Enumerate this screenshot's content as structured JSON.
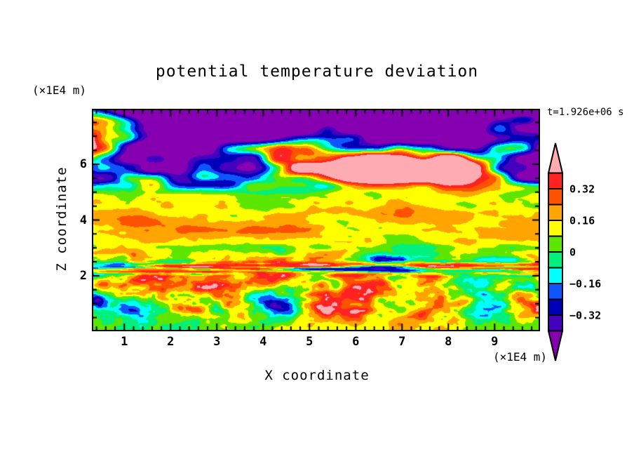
{
  "figure": {
    "title": "potential temperature deviation",
    "time_annotation": "t=1.926e+06 s",
    "background_color": "#FFFFFF"
  },
  "axes": {
    "x": {
      "label": "X coordinate",
      "unit_label": "(×1E4 m)",
      "range": [
        0.33,
        9.95
      ],
      "major_ticks": [
        1,
        2,
        3,
        4,
        5,
        6,
        7,
        8,
        9
      ],
      "minor_tick_step": 0.2
    },
    "y": {
      "label": "Z coordinate",
      "unit_label": "(×1E4 m)",
      "range": [
        0.06,
        7.94
      ],
      "major_ticks": [
        2,
        4,
        6
      ],
      "minor_tick_step": 0.5
    }
  },
  "chart_data": {
    "type": "heatmap",
    "subtype": "filled-contour",
    "title": "potential temperature deviation",
    "time_label": "t=1.926e+06 s",
    "xlabel": "X coordinate",
    "ylabel": "Z coordinate",
    "x_unit": "(×1E4 m)",
    "y_unit": "(×1E4 m)",
    "xlim": [
      0.33,
      9.95
    ],
    "ylim": [
      0.06,
      7.94
    ],
    "contour_levels": [
      -0.4,
      -0.32,
      -0.24,
      -0.16,
      -0.08,
      0,
      0.08,
      0.16,
      0.24,
      0.32,
      0.4
    ],
    "colorbar": {
      "position": "right",
      "tick_values": [
        0.32,
        0.16,
        0,
        -0.16,
        -0.32
      ],
      "tick_labels": [
        "0.32",
        "0.16",
        "0",
        "−0.16",
        "−0.32"
      ],
      "under_range_color": "#8600B2",
      "over_range_color": "#FFABB2",
      "bin_colors_low_to_high": [
        "#4400BE",
        "#0000B8",
        "#0E55FF",
        "#00FFFF",
        "#00F07E",
        "#5CE600",
        "#FFFF00",
        "#FFA400",
        "#FF5200",
        "#FF2222"
      ]
    },
    "field_structure": {
      "z_above_5": "large-amplitude breaking-wave zone: broad saturated patches above +0.4 (pink) and below −0.4 (purple) separated by thin rainbow filaments; purple dominates the very top edge",
      "z_2.6_to_5": "stratified band of weakly positive deviation (green/chartreuse background with yellow streaks near z≈4, values ≈ 0 to 0.24), occasional orange/red streaks near z≈3.6 and thin blue/navy lines near z≈3",
      "z_2.0_to_2.6": "thin alternating horizontal ribbons exceeding ±0.4 (pink streaks with purple/navy lines beneath)",
      "z_below_2": "turbulent convective layer: vortices with deep negative cores (blue/navy ≈ −0.35) and positive rings (yellow/orange/red ≈ +0.3) on a green/cyan background"
    }
  }
}
